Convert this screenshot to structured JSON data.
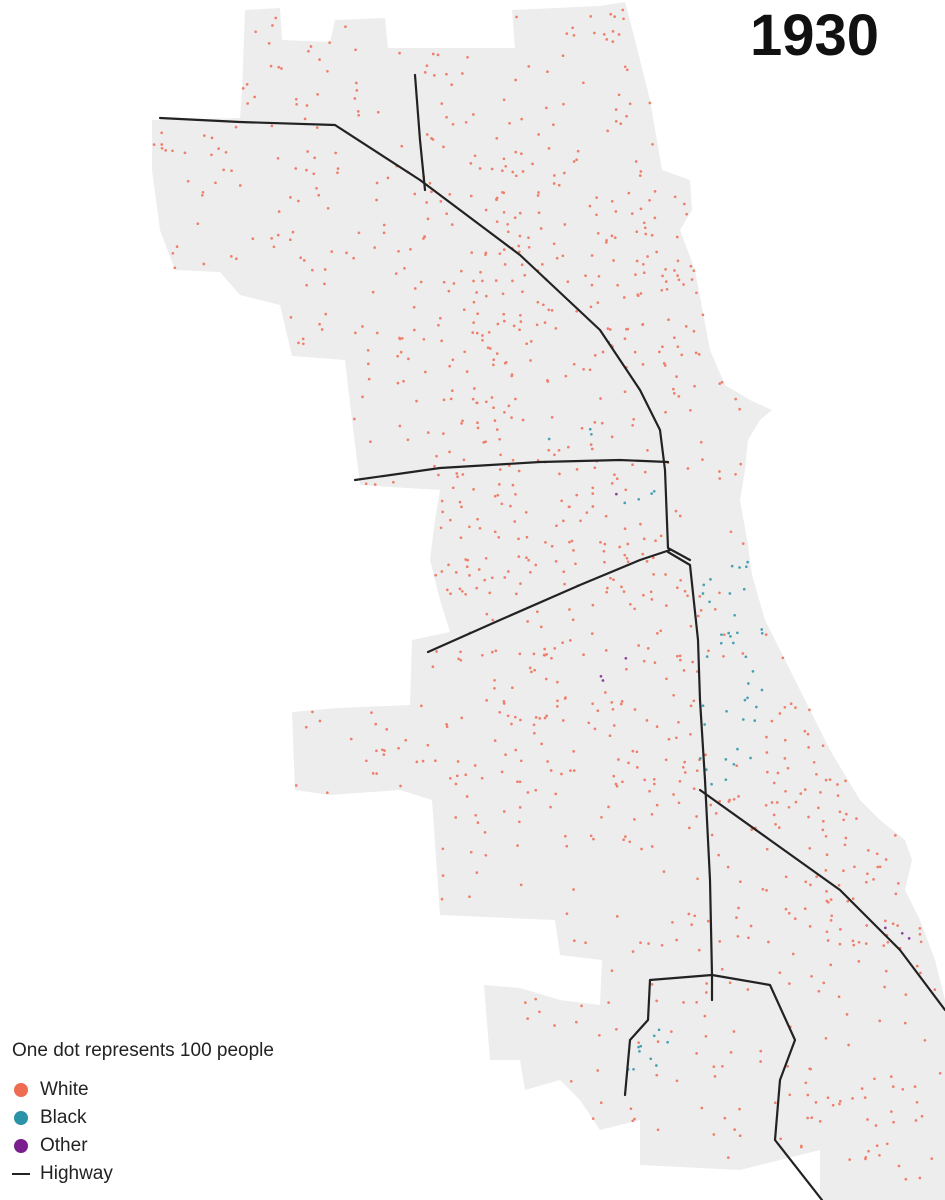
{
  "map": {
    "year": "1930",
    "legend_caption": "One dot represents 100 people",
    "legend": [
      {
        "label": "White",
        "color": "#ef6b52",
        "symbol": "dot"
      },
      {
        "label": "Black",
        "color": "#2a93a8",
        "symbol": "dot"
      },
      {
        "label": "Other",
        "color": "#7b1f8f",
        "symbol": "dot"
      },
      {
        "label": "Highway",
        "color": "#222222",
        "symbol": "line"
      }
    ],
    "colors": {
      "background": "#ffffff",
      "land": "#ededed",
      "white": "#ef6b52",
      "black": "#2a93a8",
      "other": "#7b1f8f",
      "highway": "#222222"
    }
  }
}
